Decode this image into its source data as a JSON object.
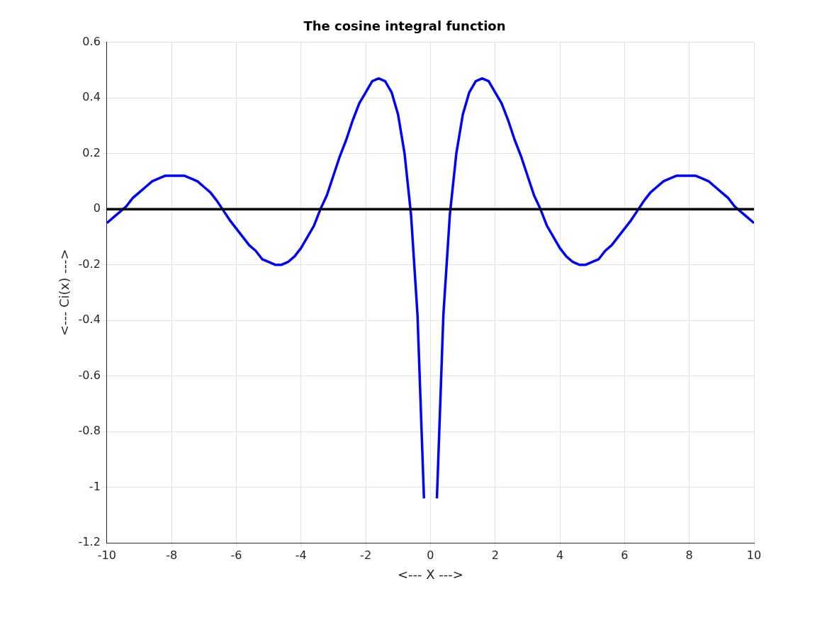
{
  "chart_data": {
    "type": "line",
    "title": "The cosine integral function",
    "xlabel": "<--- X --->",
    "ylabel": "<--- Ci(x) --->",
    "x": [
      -10,
      -9.8,
      -9.6,
      -9.4,
      -9.2,
      -9,
      -8.8,
      -8.6,
      -8.4,
      -8.2,
      -8,
      -7.8,
      -7.6,
      -7.4,
      -7.2,
      -7,
      -6.8,
      -6.6,
      -6.4,
      -6.2,
      -6,
      -5.8,
      -5.6,
      -5.4,
      -5.2,
      -5,
      -4.8,
      -4.6,
      -4.4,
      -4.2,
      -4,
      -3.8,
      -3.6,
      -3.4,
      -3.2,
      -3,
      -2.8,
      -2.6,
      -2.4,
      -2.2,
      -2,
      -1.8,
      -1.6,
      -1.4,
      -1.2,
      -1,
      -0.8,
      -0.6,
      -0.4,
      -0.2,
      0,
      0.2,
      0.4,
      0.6,
      0.8,
      1,
      1.2,
      1.4,
      1.6,
      1.8,
      2,
      2.2,
      2.4,
      2.6,
      2.8,
      3,
      3.2,
      3.4,
      3.6,
      3.8,
      4,
      4.2,
      4.4,
      4.6,
      4.8,
      5,
      5.2,
      5.4,
      5.6,
      5.8,
      6,
      6.2,
      6.4,
      6.6,
      6.8,
      7,
      7.2,
      7.4,
      7.6,
      7.8,
      8,
      8.2,
      8.4,
      8.6,
      8.8,
      9,
      9.2,
      9.4,
      9.6,
      9.8,
      10
    ],
    "series": [
      {
        "color": "#0000ff",
        "values": [
          -0.05,
          -0.03,
          -0.01,
          0.01,
          0.04,
          0.06,
          0.08,
          0.1,
          0.11,
          0.12,
          0.12,
          0.12,
          0.12,
          0.11,
          0.1,
          0.08,
          0.06,
          0.03,
          -0.005,
          -0.04,
          -0.07,
          -0.1,
          -0.13,
          -0.15,
          -0.18,
          -0.19,
          -0.2,
          -0.2,
          -0.19,
          -0.17,
          -0.14,
          -0.1,
          -0.06,
          0,
          0.05,
          0.12,
          0.19,
          0.25,
          0.32,
          0.38,
          0.42,
          0.46,
          0.47,
          0.46,
          0.42,
          0.34,
          0.2,
          -0.02,
          -0.38,
          -1.04,
          null,
          -1.04,
          -0.38,
          -0.02,
          0.2,
          0.34,
          0.42,
          0.46,
          0.47,
          0.46,
          0.42,
          0.38,
          0.32,
          0.25,
          0.19,
          0.12,
          0.05,
          0,
          -0.06,
          -0.1,
          -0.14,
          -0.17,
          -0.19,
          -0.2,
          -0.2,
          -0.19,
          -0.18,
          -0.15,
          -0.13,
          -0.1,
          -0.07,
          -0.04,
          -0.005,
          0.03,
          0.06,
          0.08,
          0.1,
          0.11,
          0.12,
          0.12,
          0.12,
          0.12,
          0.11,
          0.1,
          0.08,
          0.06,
          0.04,
          0.01,
          -0.01,
          -0.03,
          -0.05
        ]
      }
    ],
    "xlim": [
      -10,
      10
    ],
    "xticks": [
      -10,
      -8,
      -6,
      -4,
      -2,
      0,
      2,
      4,
      6,
      8,
      10
    ],
    "ylim": [
      -1.2,
      0.6
    ],
    "yticks": [
      -1.2,
      -1,
      -0.8,
      -0.6,
      -0.4,
      -0.2,
      0,
      0.2,
      0.4,
      0.6
    ],
    "grid": true,
    "marker": "none",
    "line_style": "solid",
    "ref_lines": [
      {
        "axis": "y",
        "value": 0,
        "color": "#000000"
      }
    ]
  }
}
